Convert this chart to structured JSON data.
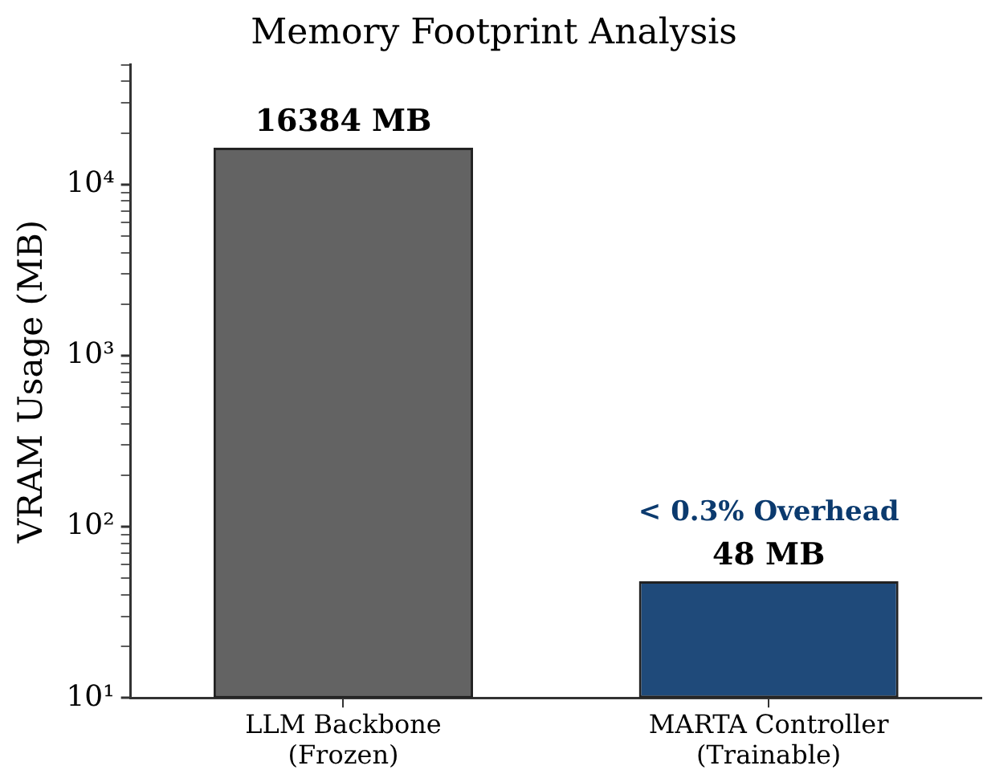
{
  "chart_data": {
    "type": "bar",
    "title": "Memory Footprint Analysis",
    "ylabel": "VRAM Usage (MB)",
    "categories": [
      "LLM Backbone\n(Frozen)",
      "MARTA Controller\n(Trainable)"
    ],
    "values": [
      16384,
      48
    ],
    "colors": [
      "#636363",
      "#1f4a7a"
    ],
    "value_labels": [
      "16384 MB",
      "48 MB"
    ],
    "annotations": [
      {
        "text": "< 0.3% Overhead",
        "x": "MARTA Controller\n(Trainable)",
        "y": 48
      }
    ],
    "log": true,
    "ylim": [
      10,
      50000
    ],
    "yticks": [
      {
        "value": 10,
        "label": "10¹"
      },
      {
        "value": 20,
        "label": null
      },
      {
        "value": 30,
        "label": null
      },
      {
        "value": 40,
        "label": null
      },
      {
        "value": 50,
        "label": null
      },
      {
        "value": 60,
        "label": null
      },
      {
        "value": 70,
        "label": null
      },
      {
        "value": 80,
        "label": null
      },
      {
        "value": 90,
        "label": null
      },
      {
        "value": 100,
        "label": "10²"
      },
      {
        "value": 200,
        "label": null
      },
      {
        "value": 300,
        "label": null
      },
      {
        "value": 400,
        "label": null
      },
      {
        "value": 500,
        "label": null
      },
      {
        "value": 600,
        "label": null
      },
      {
        "value": 700,
        "label": null
      },
      {
        "value": 800,
        "label": null
      },
      {
        "value": 900,
        "label": null
      },
      {
        "value": 1000,
        "label": "10³"
      },
      {
        "value": 2000,
        "label": null
      },
      {
        "value": 3000,
        "label": null
      },
      {
        "value": 4000,
        "label": null
      },
      {
        "value": 5000,
        "label": null
      },
      {
        "value": 6000,
        "label": null
      },
      {
        "value": 7000,
        "label": null
      },
      {
        "value": 8000,
        "label": null
      },
      {
        "value": 9000,
        "label": null
      },
      {
        "value": 10000,
        "label": "10⁴"
      },
      {
        "value": 20000,
        "label": null
      },
      {
        "value": 30000,
        "label": null
      },
      {
        "value": 40000,
        "label": null
      },
      {
        "value": 50000,
        "label": null
      }
    ],
    "grid": false,
    "legend": false
  }
}
